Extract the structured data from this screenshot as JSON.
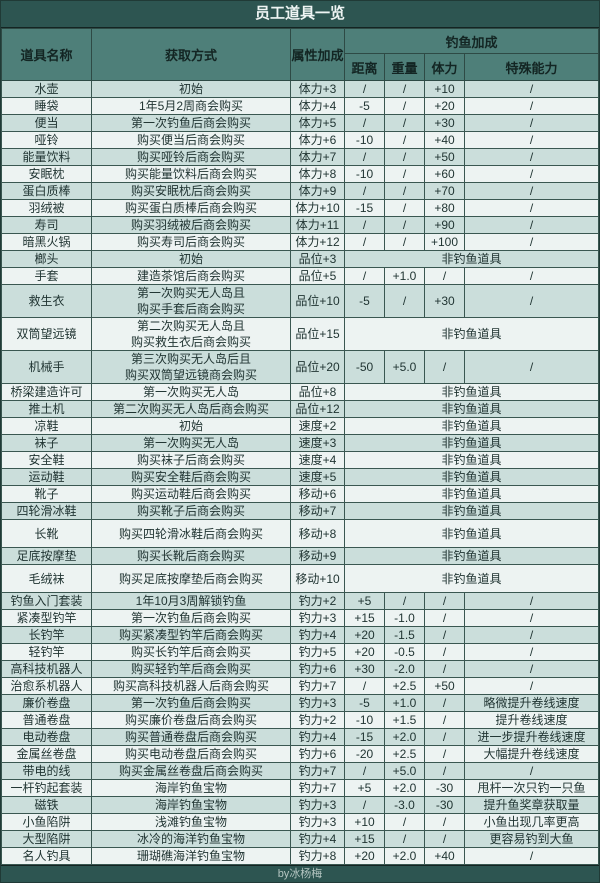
{
  "chart_data": {
    "type": "table",
    "title": "员工道具一览",
    "headers": {
      "name": "道具名称",
      "acquire": "获取方式",
      "attr": "属性加成",
      "fishing": "钓鱼加成",
      "distance": "距离",
      "weight": "重量",
      "stamina": "体力",
      "special": "特殊能力"
    },
    "non_fishing_label": "非钓鱼道具",
    "rows": [
      {
        "name": "水壶",
        "acquire": "初始",
        "attr": "体力+3",
        "dist": "/",
        "weight": "/",
        "stamina": "+10",
        "special": "/"
      },
      {
        "name": "睡袋",
        "acquire": "1年5月2周商会购买",
        "attr": "体力+4",
        "dist": "-5",
        "weight": "/",
        "stamina": "+20",
        "special": "/"
      },
      {
        "name": "便当",
        "acquire": "第一次钓鱼后商会购买",
        "attr": "体力+5",
        "dist": "/",
        "weight": "/",
        "stamina": "+30",
        "special": "/"
      },
      {
        "name": "哑铃",
        "acquire": "购买便当后商会购买",
        "attr": "体力+6",
        "dist": "-10",
        "weight": "/",
        "stamina": "+40",
        "special": "/"
      },
      {
        "name": "能量饮料",
        "acquire": "购买哑铃后商会购买",
        "attr": "体力+7",
        "dist": "/",
        "weight": "/",
        "stamina": "+50",
        "special": "/"
      },
      {
        "name": "安眠枕",
        "acquire": "购买能量饮料后商会购买",
        "attr": "体力+8",
        "dist": "-10",
        "weight": "/",
        "stamina": "+60",
        "special": "/"
      },
      {
        "name": "蛋白质棒",
        "acquire": "购买安眠枕后商会购买",
        "attr": "体力+9",
        "dist": "/",
        "weight": "/",
        "stamina": "+70",
        "special": "/"
      },
      {
        "name": "羽绒被",
        "acquire": "购买蛋白质棒后商会购买",
        "attr": "体力+10",
        "dist": "-15",
        "weight": "/",
        "stamina": "+80",
        "special": "/"
      },
      {
        "name": "寿司",
        "acquire": "购买羽绒被后商会购买",
        "attr": "体力+11",
        "dist": "/",
        "weight": "/",
        "stamina": "+90",
        "special": "/"
      },
      {
        "name": "暗黑火锅",
        "acquire": "购买寿司后商会购买",
        "attr": "体力+12",
        "dist": "/",
        "weight": "/",
        "stamina": "+100",
        "special": "/"
      },
      {
        "name": "榔头",
        "acquire": "初始",
        "attr": "品位+3",
        "non_fishing": true
      },
      {
        "name": "手套",
        "acquire": "建造茶馆后商会购买",
        "attr": "品位+5",
        "dist": "/",
        "weight": "+1.0",
        "stamina": "/",
        "special": "/"
      },
      {
        "name": "救生衣",
        "acquire": "第一次购买无人岛且\n购买手套后商会购买",
        "attr": "品位+10",
        "dist": "-5",
        "weight": "/",
        "stamina": "+30",
        "special": "/"
      },
      {
        "name": "双筒望远镜",
        "acquire": "第二次购买无人岛且\n购买救生衣后商会购买",
        "attr": "品位+15",
        "non_fishing": true
      },
      {
        "name": "机械手",
        "acquire": "第三次购买无人岛后且\n购买双筒望远镜商会购买",
        "attr": "品位+20",
        "dist": "-50",
        "weight": "+5.0",
        "stamina": "/",
        "special": "/"
      },
      {
        "name": "桥梁建造许可",
        "acquire": "第一次购买无人岛",
        "attr": "品位+8",
        "non_fishing": true
      },
      {
        "name": "推土机",
        "acquire": "第二次购买无人岛后商会购买",
        "attr": "品位+12",
        "non_fishing": true
      },
      {
        "name": "凉鞋",
        "acquire": "初始",
        "attr": "速度+2",
        "non_fishing": true
      },
      {
        "name": "袜子",
        "acquire": "第一次购买无人岛",
        "attr": "速度+3",
        "non_fishing": true
      },
      {
        "name": "安全鞋",
        "acquire": "购买袜子后商会购买",
        "attr": "速度+4",
        "non_fishing": true
      },
      {
        "name": "运动鞋",
        "acquire": "购买安全鞋后商会购买",
        "attr": "速度+5",
        "non_fishing": true
      },
      {
        "name": "靴子",
        "acquire": "购买运动鞋后商会购买",
        "attr": "移动+6",
        "non_fishing": true
      },
      {
        "name": "四轮滑冰鞋",
        "acquire": "购买靴子后商会购买",
        "attr": "移动+7",
        "non_fishing": true
      },
      {
        "name": "长靴",
        "acquire": "购买四轮滑冰鞋后商会购买",
        "attr": "移动+8",
        "non_fishing": true,
        "tall": true
      },
      {
        "name": "足底按摩垫",
        "acquire": "购买长靴后商会购买",
        "attr": "移动+9",
        "non_fishing": true
      },
      {
        "name": "毛绒袜",
        "acquire": "购买足底按摩垫后商会购买",
        "attr": "移动+10",
        "non_fishing": true,
        "tall": true
      },
      {
        "name": "钓鱼入门套装",
        "acquire": "1年10月3周解锁钓鱼",
        "attr": "钓力+2",
        "dist": "+5",
        "weight": "/",
        "stamina": "/",
        "special": "/"
      },
      {
        "name": "紧凑型钓竿",
        "acquire": "第一次钓鱼后商会购买",
        "attr": "钓力+3",
        "dist": "+15",
        "weight": "-1.0",
        "stamina": "/",
        "special": "/"
      },
      {
        "name": "长钓竿",
        "acquire": "购买紧凑型钓竿后商会购买",
        "attr": "钓力+4",
        "dist": "+20",
        "weight": "-1.5",
        "stamina": "/",
        "special": "/"
      },
      {
        "name": "轻钓竿",
        "acquire": "购买长钓竿后商会购买",
        "attr": "钓力+5",
        "dist": "+20",
        "weight": "-0.5",
        "stamina": "/",
        "special": "/"
      },
      {
        "name": "高科技机器人",
        "acquire": "购买轻钓竿后商会购买",
        "attr": "钓力+6",
        "dist": "+30",
        "weight": "-2.0",
        "stamina": "/",
        "special": "/"
      },
      {
        "name": "治愈系机器人",
        "acquire": "购买高科技机器人后商会购买",
        "attr": "钓力+7",
        "dist": "/",
        "weight": "+2.5",
        "stamina": "+50",
        "special": "/"
      },
      {
        "name": "廉价卷盘",
        "acquire": "第一次钓鱼后商会购买",
        "attr": "钓力+3",
        "dist": "-5",
        "weight": "+1.0",
        "stamina": "/",
        "special": "略微提升卷线速度"
      },
      {
        "name": "普通卷盘",
        "acquire": "购买廉价卷盘后商会购买",
        "attr": "钓力+2",
        "dist": "-10",
        "weight": "+1.5",
        "stamina": "/",
        "special": "提升卷线速度"
      },
      {
        "name": "电动卷盘",
        "acquire": "购买普通卷盘后商会购买",
        "attr": "钓力+4",
        "dist": "-15",
        "weight": "+2.0",
        "stamina": "/",
        "special": "进一步提升卷线速度"
      },
      {
        "name": "金属丝卷盘",
        "acquire": "购买电动卷盘后商会购买",
        "attr": "钓力+6",
        "dist": "-20",
        "weight": "+2.5",
        "stamina": "/",
        "special": "大幅提升卷线速度"
      },
      {
        "name": "带电的线",
        "acquire": "购买金属丝卷盘后商会购买",
        "attr": "钓力+7",
        "dist": "/",
        "weight": "+5.0",
        "stamina": "/",
        "special": "/"
      },
      {
        "name": "一杆钓起套装",
        "acquire": "海岸钓鱼宝物",
        "attr": "钓力+7",
        "dist": "+5",
        "weight": "+2.0",
        "stamina": "-30",
        "special": "甩杆一次只钓一只鱼"
      },
      {
        "name": "磁铁",
        "acquire": "海岸钓鱼宝物",
        "attr": "钓力+3",
        "dist": "/",
        "weight": "-3.0",
        "stamina": "-30",
        "special": "提升鱼奖章获取量"
      },
      {
        "name": "小鱼陷阱",
        "acquire": "浅滩钓鱼宝物",
        "attr": "钓力+3",
        "dist": "+10",
        "weight": "/",
        "stamina": "/",
        "special": "小鱼出现几率更高"
      },
      {
        "name": "大型陷阱",
        "acquire": "冰冷的海洋钓鱼宝物",
        "attr": "钓力+4",
        "dist": "+15",
        "weight": "/",
        "stamina": "/",
        "special": "更容易钓到大鱼"
      },
      {
        "name": "名人钓具",
        "acquire": "珊瑚礁海洋钓鱼宝物",
        "attr": "钓力+8",
        "dist": "+20",
        "weight": "+2.0",
        "stamina": "+40",
        "special": "/"
      }
    ]
  },
  "footer": {
    "credit": "by冰杨梅"
  },
  "colors": {
    "title_bg": "#2d5551",
    "header_bg": "#4e7f79",
    "row_dark": "#cbdedb",
    "row_light": "#edf3f2",
    "border": "#3a5751",
    "footer_text": "#b3c4c0"
  }
}
